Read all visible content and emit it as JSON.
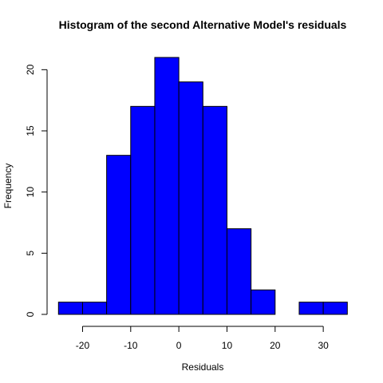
{
  "chart_data": {
    "type": "bar",
    "title": "Histogram of the second Alternative Model's residuals",
    "xlabel": "Residuals",
    "ylabel": "Frequency",
    "bin_edges": [
      -25,
      -20,
      -15,
      -10,
      -5,
      0,
      5,
      10,
      15,
      20,
      25,
      30,
      35
    ],
    "values": [
      1,
      1,
      13,
      17,
      21,
      19,
      17,
      7,
      2,
      0,
      1,
      1
    ],
    "xlim": [
      -25,
      35
    ],
    "ylim": [
      0,
      21
    ],
    "x_ticks": [
      -20,
      -10,
      0,
      10,
      20,
      30
    ],
    "y_ticks": [
      0,
      5,
      10,
      15,
      20
    ],
    "bar_color": "#0000ff",
    "grid": false
  }
}
